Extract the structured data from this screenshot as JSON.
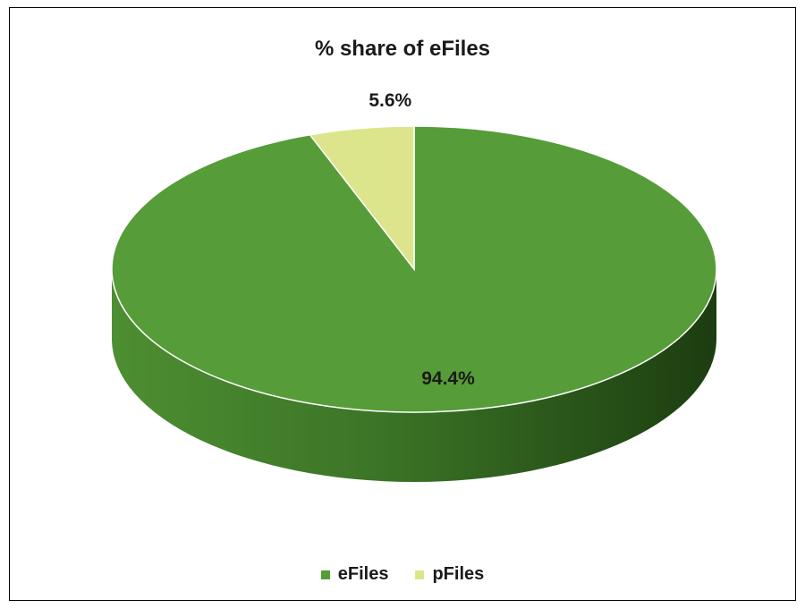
{
  "chart_data": {
    "type": "pie",
    "title": "% share of eFiles",
    "slices": [
      {
        "label": "eFiles",
        "value": 94.4,
        "display": "94.4%",
        "color": "#569c38"
      },
      {
        "label": "pFiles",
        "value": 5.6,
        "display": "5.6%",
        "color": "#dce58c"
      }
    ],
    "legend_position": "bottom",
    "style": "3d"
  }
}
